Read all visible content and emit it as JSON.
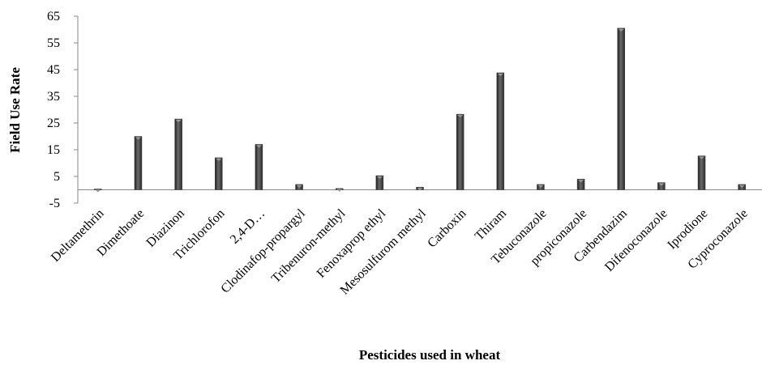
{
  "chart_data": {
    "type": "bar",
    "title": "",
    "xlabel": "Pesticides used in wheat",
    "ylabel": "Field Use Rate",
    "ylim": [
      -5,
      65
    ],
    "yticks": [
      -5,
      5,
      15,
      25,
      35,
      45,
      55,
      65
    ],
    "grid": false,
    "legend": "none",
    "bar_color": "#3d3d3d",
    "categories": [
      "Deltamethrin",
      "Dimethoate",
      "Diazinon",
      "Trichlorofon",
      "2,4-D…",
      "Clodinafop-propargyl",
      "Tribenuron-methyl",
      "Fenoxaprop ethyl",
      "Mesosulfurom methyl",
      "Carboxin",
      "Thiram",
      "Tebuconazole",
      "propiconazole",
      "Carbendazim",
      "Difenoconazole",
      "Iprodione",
      "Cyproconazole"
    ],
    "values": [
      0.3,
      20,
      26.5,
      12,
      17,
      2,
      0.5,
      5.3,
      1,
      28.3,
      43.8,
      2,
      4,
      60.5,
      2.7,
      12.7,
      2
    ]
  }
}
